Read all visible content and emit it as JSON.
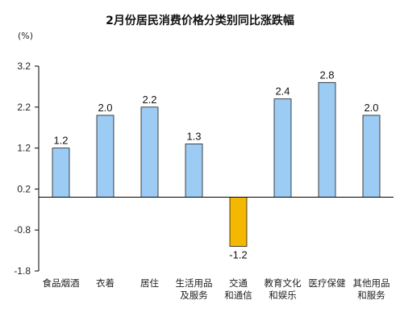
{
  "chart_data": {
    "type": "bar",
    "title": "2月份居民消费价格分类别同比涨跌幅",
    "ylabel": "(%)",
    "xlabel": "",
    "ylim": [
      -1.8,
      3.2
    ],
    "yticks": [
      3.2,
      2.2,
      1.2,
      0.2,
      -0.8,
      -1.8
    ],
    "ytick_labels": [
      "3.2",
      "2.2",
      "1.2",
      "0.2",
      "-0.8",
      "-1.8"
    ],
    "categories": [
      [
        "食品烟酒"
      ],
      [
        "衣着"
      ],
      [
        "居住"
      ],
      [
        "生活用品",
        "及服务"
      ],
      [
        "交通",
        "和通信"
      ],
      [
        "教育文化",
        "和娱乐"
      ],
      [
        "医疗保健"
      ],
      [
        "其他用品",
        "和服务"
      ]
    ],
    "values": [
      1.2,
      2.0,
      2.2,
      1.3,
      -1.2,
      2.4,
      2.8,
      2.0
    ],
    "value_labels": [
      "1.2",
      "2.0",
      "2.2",
      "1.3",
      "-1.2",
      "2.4",
      "2.8",
      "2.0"
    ],
    "baseline": 0,
    "colors": {
      "positive": "#9ccbf3",
      "positive_stroke": "#1a1a1a",
      "negative": "#f5b800",
      "negative_stroke": "#1a1a1a",
      "axis": "#000000"
    },
    "grid": false,
    "legend": "none"
  }
}
